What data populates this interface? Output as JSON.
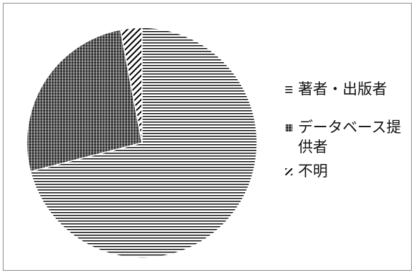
{
  "chart_data": {
    "type": "pie",
    "categories": [
      "著者・出版者",
      "データベース提供者",
      "不明"
    ],
    "values": [
      71,
      26,
      3
    ],
    "legend_position": "right",
    "patterns": [
      "horizontal-lines",
      "dense-crosshatch",
      "diagonal-lines"
    ],
    "start_angle_deg": 0,
    "direction": "clockwise"
  },
  "legend": [
    {
      "label": "著者・出版者"
    },
    {
      "label": "データベース提供者"
    },
    {
      "label": "不明"
    }
  ],
  "colors": {
    "ink": "#000000",
    "border": "#8c8c8c",
    "background": "#ffffff"
  }
}
